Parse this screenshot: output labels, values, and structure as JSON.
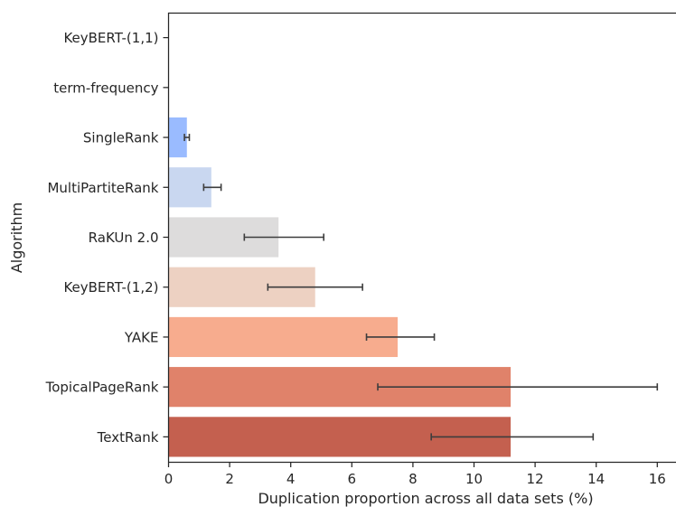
{
  "chart_data": {
    "type": "bar",
    "orientation": "horizontal",
    "xlabel": "Duplication proportion across all data sets (%)",
    "ylabel": "Algorithm",
    "xlim": [
      0,
      16.5
    ],
    "xticks": [
      "0",
      "2",
      "4",
      "6",
      "8",
      "10",
      "12",
      "14",
      "16"
    ],
    "grid": false,
    "categories": [
      "KeyBERT-(1,1)",
      "term-frequency",
      "SingleRank",
      "MultiPartiteRank",
      "RaKUn 2.0",
      "KeyBERT-(1,2)",
      "YAKE",
      "TopicalPageRank",
      "TextRank"
    ],
    "values": [
      0.0,
      0.0,
      0.6,
      1.4,
      3.6,
      4.8,
      7.5,
      11.2,
      11.2
    ],
    "error_low": [
      0.0,
      0.0,
      0.52,
      1.15,
      2.48,
      3.25,
      6.48,
      6.85,
      8.6
    ],
    "error_high": [
      0.0,
      0.0,
      0.68,
      1.72,
      5.08,
      6.35,
      8.7,
      16.0,
      13.9
    ],
    "colors": [
      "#3b4cc0",
      "#6688ee",
      "#9abbff",
      "#c9d7f0",
      "#dddcdc",
      "#edd1c2",
      "#f7ac8e",
      "#e0826a",
      "#c4604f"
    ]
  }
}
